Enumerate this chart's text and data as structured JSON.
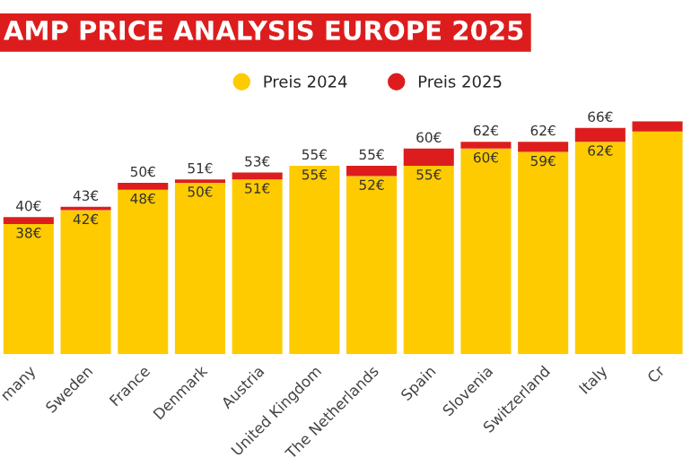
{
  "chart_data": {
    "type": "bar",
    "title": "AMP PRICE ANALYSIS EUROPE 2025",
    "stacked": true,
    "legend": "top",
    "grid": false,
    "categories": [
      "many",
      "Sweden",
      "France",
      "Denmark",
      "Austria",
      "United Kingdom",
      "The Netherlands",
      "Spain",
      "Slovenia",
      "Switzerland",
      "Italy",
      "Cr"
    ],
    "series": [
      {
        "name": "Preis 2024",
        "color": "#fecb00",
        "values": [
          38,
          42,
          48,
          50,
          51,
          55,
          52,
          55,
          60,
          59,
          62,
          65
        ],
        "value_labels": [
          "38€",
          "42€",
          "48€",
          "50€",
          "51€",
          "55€",
          "52€",
          "55€",
          "60€",
          "59€",
          "62€",
          null
        ]
      },
      {
        "name": "Preis 2025",
        "color": "#dd1d1d",
        "values": [
          2,
          1,
          2,
          1,
          2,
          0,
          3,
          5,
          2,
          3,
          4,
          3
        ]
      }
    ],
    "totals": [
      "40€",
      "43€",
      "50€",
      "51€",
      "53€",
      "55€",
      "55€",
      "60€",
      "62€",
      "62€",
      "66€",
      null
    ]
  }
}
